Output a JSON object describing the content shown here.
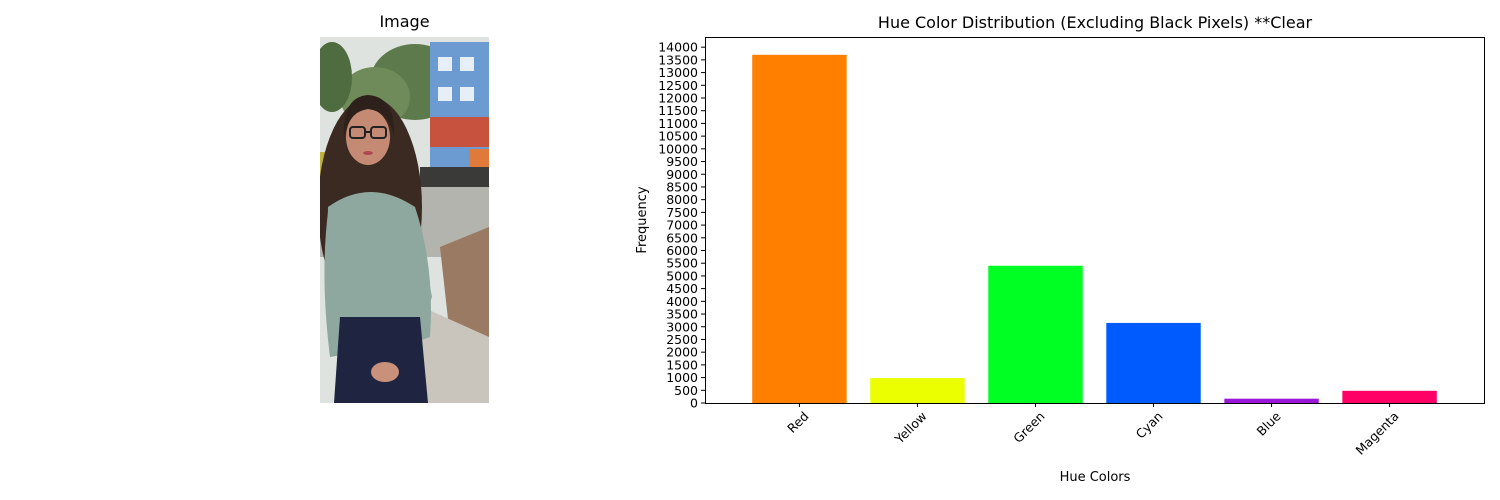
{
  "image_panel": {
    "title": "Image",
    "photo_description": "Photo of a woman with long dark hair and glasses, wearing a light green-grey sweater and dark jeans, standing on a street sidewalk with trees and buildings behind her"
  },
  "chart_data": {
    "type": "bar",
    "title": "Hue Color Distribution (Excluding Black Pixels) **Clear",
    "xlabel": "Hue Colors",
    "ylabel": "Frequency",
    "categories": [
      "Red",
      "Yellow",
      "Green",
      "Cyan",
      "Blue",
      "Magenta"
    ],
    "values": [
      13700,
      980,
      5400,
      3150,
      170,
      480
    ],
    "bar_colors": [
      "#ff7f00",
      "#ecff00",
      "#00ff23",
      "#005bff",
      "#9a16d8",
      "#ff0066"
    ],
    "ylim": [
      0,
      14400
    ],
    "yticks": [
      0,
      500,
      1000,
      1500,
      2000,
      2500,
      3000,
      3500,
      4000,
      4500,
      5000,
      5500,
      6000,
      6500,
      7000,
      7500,
      8000,
      8500,
      9000,
      9500,
      10000,
      10500,
      11000,
      11500,
      12000,
      12500,
      13000,
      13500,
      14000
    ],
    "grid": false,
    "legend": "none"
  }
}
